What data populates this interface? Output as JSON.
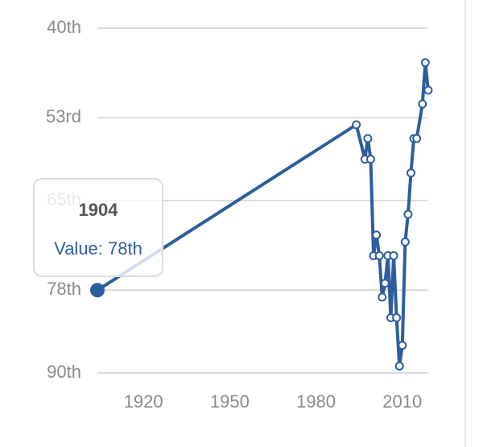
{
  "chart_data": {
    "type": "line",
    "x": [
      1904,
      1994,
      1997,
      1998,
      1999,
      2000,
      2001,
      2002,
      2003,
      2004,
      2005,
      2006,
      2007,
      2008,
      2009,
      2010,
      2011,
      2012,
      2013,
      2014,
      2015,
      2017,
      2018,
      2019
    ],
    "series": [
      {
        "color": "#2d5d9f",
        "values": [
          78,
          54,
          59,
          56,
          59,
          73,
          70,
          73,
          79,
          77,
          73,
          82,
          73,
          82,
          89,
          86,
          71,
          67,
          61,
          56,
          56,
          51,
          45,
          49
        ]
      }
    ],
    "xlim": [
      1904,
      2019.3
    ],
    "xticks": [
      1920,
      1950,
      1980,
      2010
    ],
    "ylim": [
      40,
      90
    ],
    "y_reversed": true,
    "yticks": [
      {
        "value": 40,
        "label": "40th"
      },
      {
        "value": 53,
        "label": "53rd"
      },
      {
        "value": 65,
        "label": "65th"
      },
      {
        "value": 78,
        "label": "78th"
      },
      {
        "value": 90,
        "label": "90th"
      }
    ],
    "grid": true,
    "tooltip": {
      "title": "1904",
      "label": "Value: 78th"
    }
  }
}
